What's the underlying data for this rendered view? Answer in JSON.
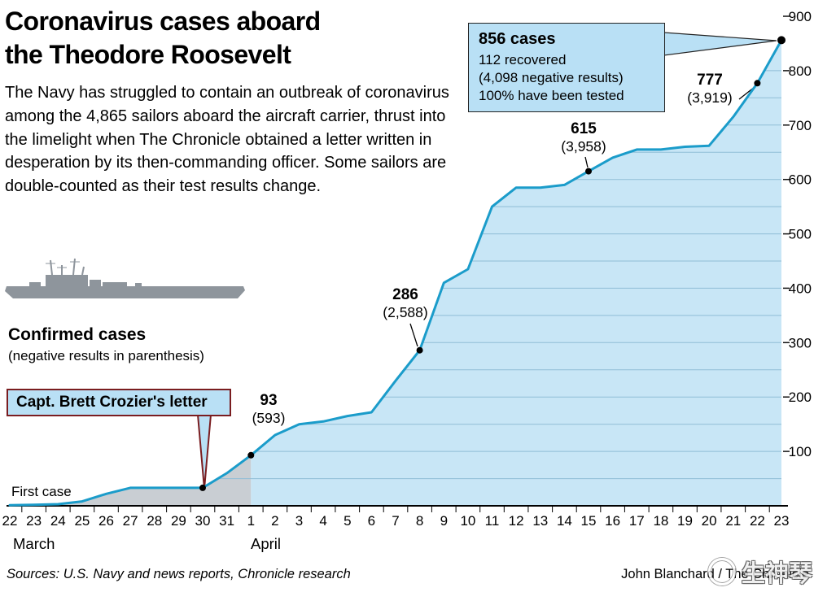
{
  "title": {
    "line1": "Coronavirus cases aboard",
    "line2": "the Theodore Roosevelt"
  },
  "intro": "The Navy has struggled to contain an outbreak of coronavirus among the 4,865 sailors aboard the aircraft carrier, thrust into the limelight when The Chronicle obtained a letter written in desperation by its then-commanding officer. Some sailors are double-counted as their test results change.",
  "legend": {
    "label": "Confirmed cases",
    "sublabel": "(negative results in parenthesis)"
  },
  "callouts": {
    "crozier": "Capt. Brett Crozier's letter",
    "first_case": "First case",
    "final": {
      "cases": "856 cases",
      "recovered": "112 recovered",
      "negative": "(4,098 negative results)",
      "tested": "100% have been tested"
    }
  },
  "annotations": [
    {
      "value": "93",
      "negative": "(593)",
      "day_index": 10
    },
    {
      "value": "286",
      "negative": "(2,588)",
      "day_index": 17
    },
    {
      "value": "615",
      "negative": "(3,958)",
      "day_index": 24
    },
    {
      "value": "777",
      "negative": "(3,919)",
      "day_index": 31
    }
  ],
  "footer": {
    "sources": "Sources: U.S. Navy and news reports, Chronicle research",
    "credit": "John Blanchard / The Chronicle",
    "watermark": "生神琴"
  },
  "chart_data": {
    "type": "area",
    "title": "Coronavirus cases aboard the Theodore Roosevelt",
    "ylabel": "Confirmed cases",
    "ylim": [
      0,
      900
    ],
    "y_ticks": [
      100,
      200,
      300,
      400,
      500,
      600,
      700,
      800,
      900
    ],
    "x_tick_labels": [
      "22",
      "23",
      "24",
      "25",
      "26",
      "27",
      "28",
      "29",
      "30",
      "31",
      "1",
      "2",
      "3",
      "4",
      "5",
      "6",
      "7",
      "8",
      "9",
      "10",
      "11",
      "12",
      "13",
      "14",
      "15",
      "16",
      "17",
      "18",
      "19",
      "20",
      "21",
      "22",
      "23"
    ],
    "months": [
      {
        "label": "March"
      },
      {
        "label": "April"
      }
    ],
    "values": [
      1,
      2,
      3,
      8,
      22,
      33,
      33,
      33,
      33,
      60,
      93,
      130,
      150,
      155,
      165,
      172,
      230,
      286,
      410,
      435,
      550,
      585,
      585,
      590,
      615,
      640,
      655,
      655,
      660,
      662,
      715,
      777,
      856
    ],
    "split_index": 10,
    "dot_indices": [
      8,
      10,
      17,
      24,
      31,
      32
    ],
    "colors": {
      "line": "#1b9cca",
      "april_fill": "#c8e6f6",
      "march_fill": "#c9ced3",
      "stripe": "#8fbdd6",
      "box_fill": "#b9e0f5",
      "maroon": "#7a1d20"
    }
  }
}
